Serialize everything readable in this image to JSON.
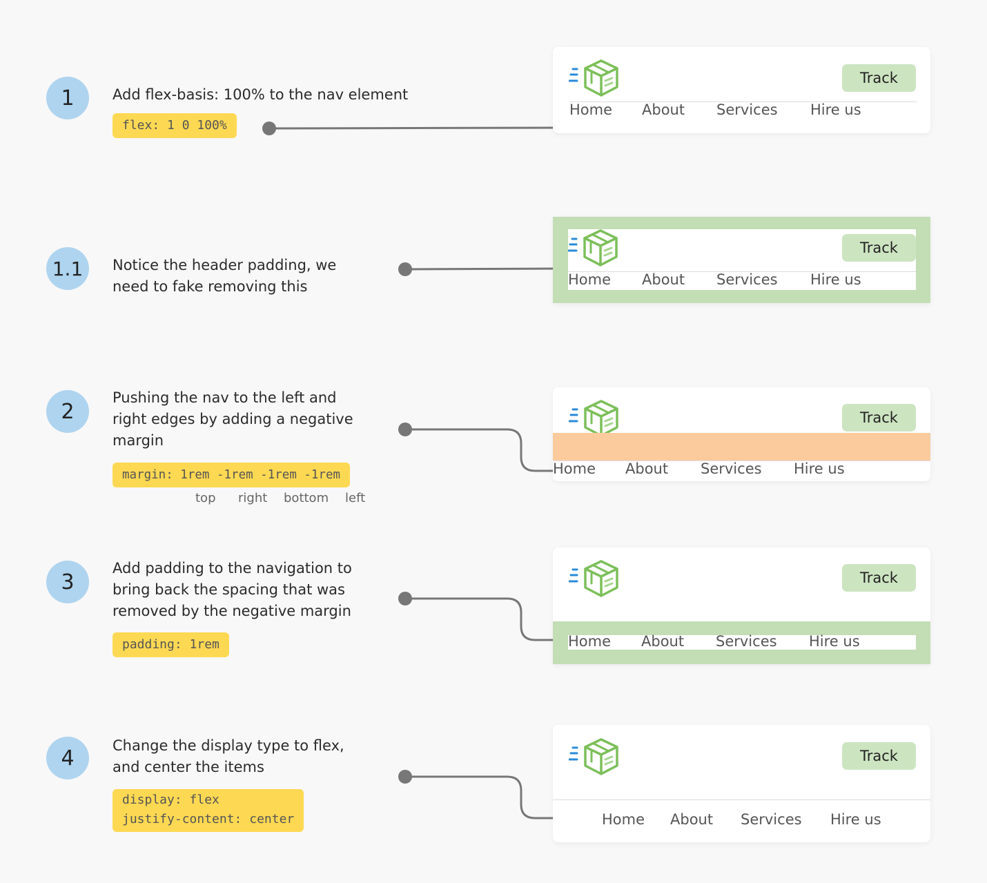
{
  "colors": {
    "step_circle": "#aed4ef",
    "code_bg": "#fdd853",
    "track_bg": "#cde4c1",
    "padding_highlight": "#c3ddb5",
    "margin_highlight": "#fbcb9d",
    "connector": "#777777",
    "logo_green": "#7cbf5a",
    "logo_blue": "#2a8ad8"
  },
  "header": {
    "track_label": "Track",
    "logo_icon": "box-delivery-logo"
  },
  "nav": {
    "items": [
      "Home",
      "About",
      "Services",
      "Hire us"
    ]
  },
  "steps": [
    {
      "number": "1",
      "text": "Add flex-basis: 100% to the nav element",
      "code": "flex: 1 0 100%"
    },
    {
      "number": "1.1",
      "text": "Notice the header padding, we need to fake removing this"
    },
    {
      "number": "2",
      "text": "Pushing the nav to the left and right edges by adding a negative margin",
      "code": "margin: 1rem -1rem -1rem -1rem",
      "code_labels": [
        "top",
        "right",
        "bottom",
        "left"
      ]
    },
    {
      "number": "3",
      "text": "Add padding to the navigation to bring back the spacing that was removed by the negative margin",
      "code": "padding: 1rem"
    },
    {
      "number": "4",
      "text": "Change the display type to flex, and center the items",
      "code": "display: flex\njustify-content: center"
    }
  ]
}
